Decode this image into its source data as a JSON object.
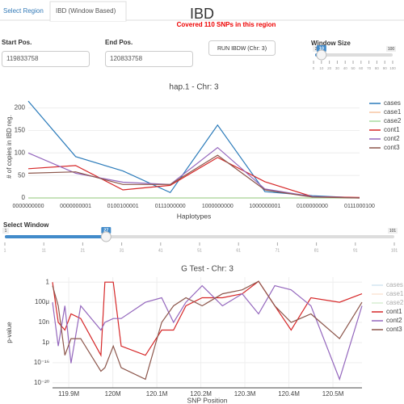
{
  "tabs": [
    "Select Region",
    "IBD (Window Based)"
  ],
  "header": {
    "title": "IBD",
    "subtitle": "Covered 110 SNPs in this region"
  },
  "form": {
    "start_label": "Start Pos.",
    "start_value": "119833758",
    "end_label": "End Pos.",
    "end_value": "120833758",
    "button": "RUN IBDW (Chr: 3)"
  },
  "window_size": {
    "label": "Window Size",
    "min": 2,
    "max": 100,
    "value": 10,
    "ticks": [
      0,
      10,
      20,
      30,
      40,
      50,
      60,
      70,
      80,
      90,
      100
    ]
  },
  "select_window": {
    "label": "Select Window",
    "min": 1,
    "max": 101,
    "value": 27,
    "ticks": [
      1,
      11,
      21,
      31,
      41,
      51,
      61,
      71,
      81,
      91,
      101
    ]
  },
  "chart_data": [
    {
      "type": "line",
      "title": "hap.1 - Chr: 3",
      "x_label": "Haplotypes",
      "y_label": "# of copies in IBD reg.",
      "categories": [
        "0000000000",
        "0000000001",
        "0100100001",
        "0111000000",
        "1000000000",
        "1000000001",
        "0100000000",
        "0111000100"
      ],
      "series": [
        {
          "name": "cases",
          "color": "#2b7bba",
          "values": [
            215,
            92,
            60,
            12,
            162,
            14,
            5,
            0
          ]
        },
        {
          "name": "case1",
          "color": "#f7c6a3",
          "values": [
            0,
            0,
            0,
            0,
            0,
            0,
            0,
            0
          ]
        },
        {
          "name": "case2",
          "color": "#a9dba0",
          "values": [
            0,
            0,
            0,
            0,
            0,
            0,
            0,
            0
          ]
        },
        {
          "name": "cont1",
          "color": "#d62728",
          "values": [
            65,
            72,
            18,
            28,
            90,
            36,
            3,
            1
          ]
        },
        {
          "name": "cont2",
          "color": "#9467bd",
          "values": [
            100,
            55,
            35,
            30,
            112,
            20,
            3,
            0
          ]
        },
        {
          "name": "cont3",
          "color": "#8c564b",
          "values": [
            55,
            58,
            30,
            30,
            95,
            18,
            2,
            0
          ]
        }
      ],
      "ylim": [
        0,
        228
      ],
      "yticks": [
        0,
        50,
        100,
        150,
        200
      ],
      "grid": true
    },
    {
      "type": "line",
      "title": "G Test - Chr: 3",
      "x_label": "SNP Position",
      "y_label": "p-value",
      "log_y": true,
      "x": [
        119863000,
        119876000,
        119891000,
        119905000,
        119927000,
        119973000,
        119982000,
        120001000,
        120019000,
        120074000,
        120111000,
        120138000,
        120166000,
        120203000,
        120249000,
        120294000,
        120331000,
        120368000,
        120405000,
        120450000,
        120515000,
        120566000
      ],
      "series": [
        {
          "name": "cases",
          "color": "#9ecae1",
          "visible": "legendonly",
          "values": [
            null,
            null,
            null,
            null,
            null,
            null,
            null,
            null,
            null,
            null,
            null,
            null,
            null,
            null,
            null,
            null,
            null,
            null,
            null,
            null,
            null,
            null
          ]
        },
        {
          "name": "case1",
          "color": "#f7c6a3",
          "visible": "legendonly",
          "values": [
            null,
            null,
            null,
            null,
            null,
            null,
            null,
            null,
            null,
            null,
            null,
            null,
            null,
            null,
            null,
            null,
            null,
            null,
            null,
            null,
            null,
            null
          ]
        },
        {
          "name": "case2",
          "color": "#a9dba0",
          "visible": "legendonly",
          "values": [
            null,
            null,
            null,
            null,
            null,
            null,
            null,
            null,
            null,
            null,
            null,
            null,
            null,
            null,
            null,
            null,
            null,
            null,
            null,
            null,
            null,
            null
          ]
        },
        {
          "name": "cont1",
          "color": "#d62728",
          "values": [
            1,
            1e-08,
            3e-10,
            5e-07,
            6e-08,
            3e-15,
            1,
            1,
            2e-13,
            3e-15,
            3e-10,
            3e-10,
            2e-05,
            0.0008,
            0.0008,
            0.005,
            1.5,
            2e-05,
            3e-10,
            0.0008,
            0.0001,
            0.005
          ]
        },
        {
          "name": "cont2",
          "color": "#9467bd",
          "values": [
            0.0001,
            2e-13,
            2e-05,
            8e-17,
            2e-05,
            3e-10,
            1e-08,
            6e-08,
            6e-08,
            0.0001,
            0.0008,
            1e-08,
            0.0001,
            0.2,
            2e-05,
            0.005,
            5e-07,
            0.2,
            0.03,
            2e-05,
            5e-20,
            2e-05
          ]
        },
        {
          "name": "cont3",
          "color": "#8c564b",
          "values": [
            0.2,
            2e-05,
            3e-15,
            6e-12,
            6e-12,
            2e-18,
            1e-17,
            2e-13,
            1e-17,
            5e-20,
            1e-08,
            2e-05,
            0.0008,
            2e-05,
            0.005,
            0.03,
            1.5,
            2e-05,
            1e-08,
            5e-07,
            6e-12,
            0.0001
          ]
        }
      ],
      "xlim": [
        119863000,
        120566000
      ],
      "xticks": [
        {
          "value": 119900000,
          "label": "119.9M"
        },
        {
          "value": 120000000,
          "label": "120M"
        },
        {
          "value": 120100000,
          "label": "120.1M"
        },
        {
          "value": 120200000,
          "label": "120.2M"
        },
        {
          "value": 120300000,
          "label": "120.3M"
        },
        {
          "value": 120400000,
          "label": "120.4M"
        },
        {
          "value": 120500000,
          "label": "120.5M"
        }
      ],
      "ylim": [
        1e-21,
        10
      ],
      "yticks": [
        1,
        {
          "value": 0.0001,
          "label": "100μ"
        },
        {
          "value": 1e-08,
          "label": "10n"
        },
        {
          "value": 1e-12,
          "label": "1p"
        },
        {
          "value": 1e-16,
          "label": "10⁻¹⁶"
        },
        {
          "value": 1e-20,
          "label": "10⁻²⁰"
        }
      ],
      "grid": true
    }
  ]
}
